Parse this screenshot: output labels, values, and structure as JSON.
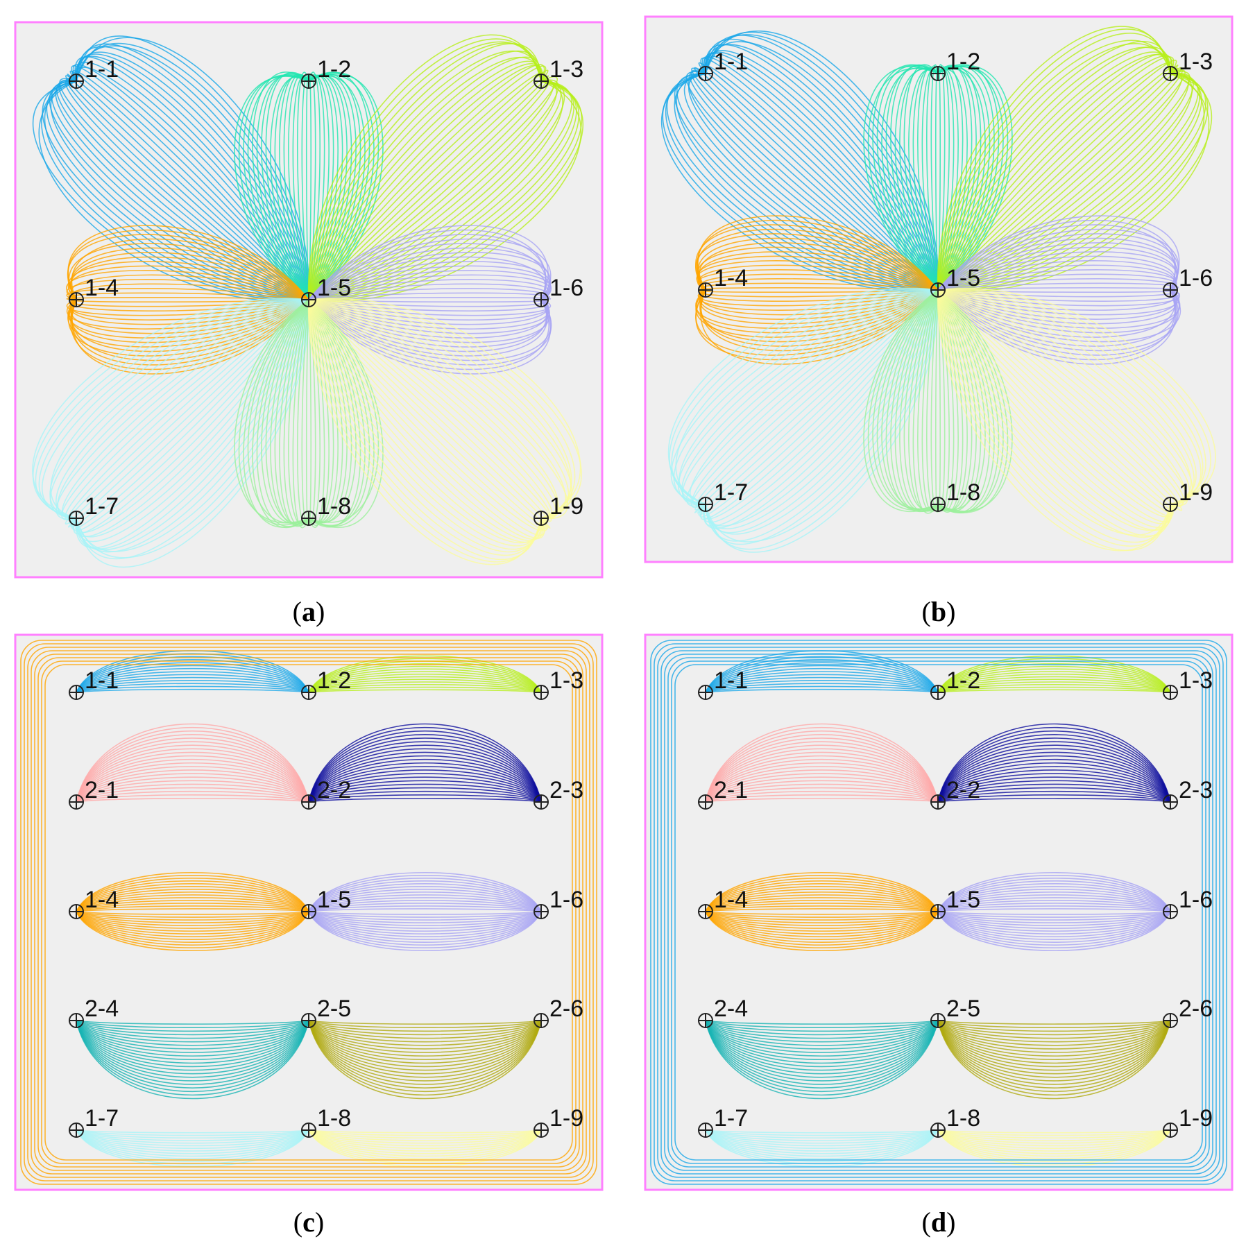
{
  "colors": {
    "frame": "#ff80ff",
    "background": "#efefef",
    "well_1_1": "#1aa7e8",
    "well_1_2": "#22e6b0",
    "well_1_3": "#b6ef1a",
    "well_1_4": "#ffa500",
    "well_1_6": "#a8a4f4",
    "well_1_7": "#a8f4f8",
    "well_1_8": "#9cf09c",
    "well_1_9": "#fbfb9c",
    "well_2_1": "#ffa8a8",
    "well_2_2": "#0c0c9c",
    "well_2_4": "#18b4b4",
    "well_2_6": "#b0aa10"
  },
  "panels": [
    {
      "caption_letter": "a",
      "wells": [
        {
          "label": "1-1",
          "row": 0,
          "col": 0
        },
        {
          "label": "1-2",
          "row": 0,
          "col": 1
        },
        {
          "label": "1-3",
          "row": 0,
          "col": 2
        },
        {
          "label": "1-4",
          "row": 2,
          "col": 0
        },
        {
          "label": "1-5",
          "row": 2,
          "col": 1
        },
        {
          "label": "1-6",
          "row": 2,
          "col": 2
        },
        {
          "label": "1-7",
          "row": 4,
          "col": 0
        },
        {
          "label": "1-8",
          "row": 4,
          "col": 1
        },
        {
          "label": "1-9",
          "row": 4,
          "col": 2
        }
      ]
    },
    {
      "caption_letter": "b",
      "wells": [
        {
          "label": "1-1",
          "row": 0,
          "col": 0
        },
        {
          "label": "1-2",
          "row": 0,
          "col": 1
        },
        {
          "label": "1-3",
          "row": 0,
          "col": 2
        },
        {
          "label": "1-4",
          "row": 2,
          "col": 0
        },
        {
          "label": "1-5",
          "row": 2,
          "col": 1
        },
        {
          "label": "1-6",
          "row": 2,
          "col": 2
        },
        {
          "label": "1-7",
          "row": 4,
          "col": 0
        },
        {
          "label": "1-8",
          "row": 4,
          "col": 1
        },
        {
          "label": "1-9",
          "row": 4,
          "col": 2
        }
      ]
    },
    {
      "caption_letter": "c",
      "wells": [
        {
          "label": "1-1",
          "row": 0,
          "col": 0
        },
        {
          "label": "1-2",
          "row": 0,
          "col": 1
        },
        {
          "label": "1-3",
          "row": 0,
          "col": 2
        },
        {
          "label": "2-1",
          "row": 1,
          "col": 0
        },
        {
          "label": "2-2",
          "row": 1,
          "col": 1
        },
        {
          "label": "2-3",
          "row": 1,
          "col": 2
        },
        {
          "label": "1-4",
          "row": 2,
          "col": 0
        },
        {
          "label": "1-5",
          "row": 2,
          "col": 1
        },
        {
          "label": "1-6",
          "row": 2,
          "col": 2
        },
        {
          "label": "2-4",
          "row": 3,
          "col": 0
        },
        {
          "label": "2-5",
          "row": 3,
          "col": 1
        },
        {
          "label": "2-6",
          "row": 3,
          "col": 2
        },
        {
          "label": "1-7",
          "row": 4,
          "col": 0
        },
        {
          "label": "1-8",
          "row": 4,
          "col": 1
        },
        {
          "label": "1-9",
          "row": 4,
          "col": 2
        }
      ]
    },
    {
      "caption_letter": "d",
      "wells": [
        {
          "label": "1-1",
          "row": 0,
          "col": 0
        },
        {
          "label": "1-2",
          "row": 0,
          "col": 1
        },
        {
          "label": "1-3",
          "row": 0,
          "col": 2
        },
        {
          "label": "2-1",
          "row": 1,
          "col": 0
        },
        {
          "label": "2-2",
          "row": 1,
          "col": 1
        },
        {
          "label": "2-3",
          "row": 1,
          "col": 2
        },
        {
          "label": "1-4",
          "row": 2,
          "col": 0
        },
        {
          "label": "1-5",
          "row": 2,
          "col": 1
        },
        {
          "label": "1-6",
          "row": 2,
          "col": 2
        },
        {
          "label": "2-4",
          "row": 3,
          "col": 0
        },
        {
          "label": "2-5",
          "row": 3,
          "col": 1
        },
        {
          "label": "2-6",
          "row": 3,
          "col": 2
        },
        {
          "label": "1-7",
          "row": 4,
          "col": 0
        },
        {
          "label": "1-8",
          "row": 4,
          "col": 1
        },
        {
          "label": "1-9",
          "row": 4,
          "col": 2
        }
      ]
    }
  ]
}
